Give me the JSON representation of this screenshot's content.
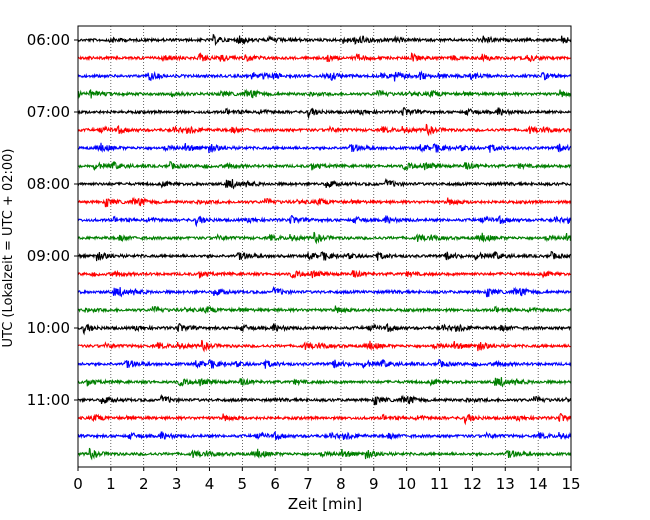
{
  "chart_data": {
    "type": "line",
    "title": "",
    "xlabel": "Zeit  [min]",
    "ylabel": "UTC (Lokalzeit = UTC + 02:00)",
    "xlim": [
      0,
      15
    ],
    "x_ticks": [
      "0",
      "1",
      "2",
      "3",
      "4",
      "5",
      "6",
      "7",
      "8",
      "9",
      "10",
      "11",
      "12",
      "13",
      "14",
      "15"
    ],
    "y_ticks": [
      "06:00",
      "07:00",
      "08:00",
      "09:00",
      "10:00",
      "11:00"
    ],
    "grid": "vertical dotted",
    "trace_interval_min": 15,
    "trace_colors": [
      "#000000",
      "#ff0000",
      "#0000ff",
      "#007f00"
    ],
    "trace_start_times": [
      "06:00",
      "06:15",
      "06:30",
      "06:45",
      "07:00",
      "07:15",
      "07:30",
      "07:45",
      "08:00",
      "08:15",
      "08:30",
      "08:45",
      "09:00",
      "09:15",
      "09:30",
      "09:45",
      "10:00",
      "10:15",
      "10:30",
      "10:45",
      "11:00",
      "11:15",
      "11:30",
      "11:45"
    ]
  }
}
